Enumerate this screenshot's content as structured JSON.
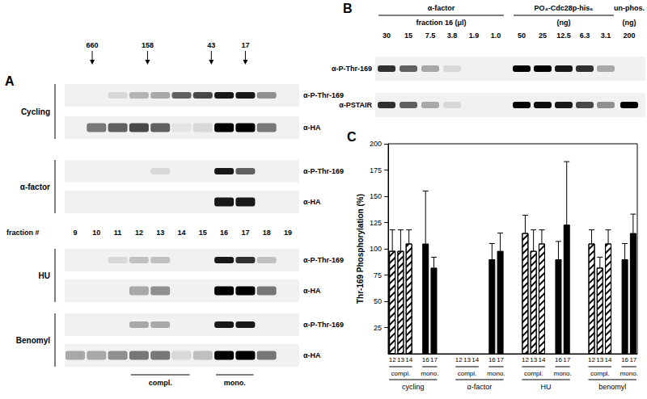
{
  "panels": {
    "A": {
      "title": "A",
      "markers": [
        {
          "value": 660,
          "fraction": 9.8
        },
        {
          "value": 158,
          "fraction": 12.4
        },
        {
          "value": 43,
          "fraction": 15.4
        },
        {
          "value": 17,
          "fraction": 17
        }
      ],
      "fractions_label": "fraction #",
      "fractions": [
        9,
        10,
        11,
        12,
        13,
        14,
        15,
        16,
        17,
        18,
        19
      ],
      "conditions": [
        {
          "name": "Cycling",
          "rows": [
            {
              "label": "α-P-Thr-169",
              "signal": [
                0,
                0,
                0.1,
                0.25,
                0.3,
                0.6,
                0.7,
                0.9,
                0.9,
                0.4,
                0
              ]
            },
            {
              "label": "α-HA",
              "signal": [
                0,
                0.5,
                0.6,
                0.7,
                0.6,
                0.05,
                0.1,
                1,
                1,
                0.5,
                0
              ]
            }
          ]
        },
        {
          "name": "α-factor",
          "rows": [
            {
              "label": "α-P-Thr-169",
              "signal": [
                0,
                0,
                0,
                0,
                0.1,
                0,
                0,
                0.9,
                0.6,
                0,
                0
              ]
            },
            {
              "label": "α-HA",
              "signal": [
                0,
                0,
                0,
                0,
                0,
                0,
                0,
                0.9,
                0.9,
                0,
                0
              ]
            }
          ]
        },
        {
          "name": "HU",
          "rows": [
            {
              "label": "α-P-Thr-169",
              "signal": [
                0,
                0,
                0.1,
                0.2,
                0.2,
                0,
                0,
                0.9,
                0.8,
                0.2,
                0
              ]
            },
            {
              "label": "α-HA",
              "signal": [
                0,
                0,
                0,
                0.3,
                0.4,
                0,
                0,
                1,
                1,
                0.5,
                0
              ]
            }
          ]
        },
        {
          "name": "Benomyl",
          "rows": [
            {
              "label": "α-P-Thr-169",
              "signal": [
                0,
                0,
                0,
                0.3,
                0.3,
                0,
                0,
                0.9,
                0.9,
                0,
                0
              ]
            },
            {
              "label": "α-HA",
              "signal": [
                0.3,
                0.3,
                0.4,
                0.5,
                0.5,
                0.1,
                0.2,
                1,
                1,
                0.5,
                0
              ]
            }
          ]
        }
      ],
      "brackets": [
        {
          "label": "compl.",
          "from": 12,
          "to": 14
        },
        {
          "label": "mono.",
          "from": 16,
          "to": 17
        }
      ]
    },
    "B": {
      "title": "B",
      "groups": [
        {
          "top": "α-factor",
          "bottom": "fraction 16 (μl)",
          "lanes": [
            "30",
            "15",
            "7.5",
            "3.8",
            "1.9",
            "1.0"
          ]
        },
        {
          "top": "PO₄-Cdc28p-his₆",
          "bottom": "(ng)",
          "lanes": [
            "50",
            "25",
            "12.5",
            "6.3",
            "3.1"
          ]
        },
        {
          "top": "un-phos.",
          "bottom": "(ng)",
          "lanes": [
            "200"
          ]
        }
      ],
      "rows": [
        {
          "label": "α-P-Thr-169",
          "signal": [
            0.8,
            0.6,
            0.3,
            0.1,
            0,
            0,
            1,
            1,
            0.9,
            0.8,
            0.3,
            0
          ]
        },
        {
          "label": "α-PSTAIR",
          "signal": [
            0.8,
            0.6,
            0.3,
            0.1,
            0,
            0,
            1,
            0.95,
            0.9,
            0.7,
            0.4,
            1
          ]
        }
      ]
    }
  },
  "chart_data": {
    "type": "bar",
    "title": "C",
    "y_label": "Thr-169 Phosphorylation (%)",
    "categories": [
      "12",
      "13",
      "14",
      null,
      "16",
      "17",
      null,
      null,
      "12",
      "13",
      "14",
      null,
      "16",
      "17",
      null,
      null,
      "12",
      "13",
      "14",
      null,
      "16",
      "17",
      null,
      null,
      "12",
      "13",
      "14",
      null,
      "16",
      "17"
    ],
    "series": [
      {
        "name": "compl.",
        "color": "#ffffff",
        "values": [
          98,
          98,
          105,
          null,
          null,
          null,
          null,
          null,
          null,
          null,
          null,
          null,
          null,
          null,
          null,
          null,
          115,
          98,
          105,
          null,
          null,
          null,
          null,
          null,
          105,
          82,
          105,
          null,
          null,
          null
        ],
        "errors": [
          20,
          20,
          13,
          null,
          null,
          null,
          null,
          null,
          null,
          null,
          null,
          null,
          null,
          null,
          null,
          null,
          17,
          20,
          13,
          null,
          null,
          null,
          null,
          null,
          13,
          10,
          13,
          null,
          null,
          null
        ]
      },
      {
        "name": "mono.",
        "color": "#000000",
        "values": [
          null,
          null,
          null,
          null,
          105,
          82,
          null,
          null,
          null,
          null,
          null,
          null,
          90,
          98,
          null,
          null,
          null,
          null,
          null,
          null,
          90,
          123,
          null,
          null,
          null,
          null,
          null,
          null,
          90,
          115
        ],
        "errors": [
          null,
          null,
          null,
          null,
          50,
          10,
          null,
          null,
          null,
          null,
          null,
          null,
          15,
          17,
          null,
          null,
          null,
          null,
          null,
          null,
          17,
          60,
          null,
          null,
          null,
          null,
          null,
          null,
          15,
          18
        ]
      }
    ],
    "groups": [
      {
        "label": "cycling",
        "from": 0,
        "to": 5
      },
      {
        "label": "α-factor",
        "from": 8,
        "to": 13
      },
      {
        "label": "HU",
        "from": 16,
        "to": 21
      },
      {
        "label": "benomyl",
        "from": 24,
        "to": 29
      }
    ],
    "brackets": [
      {
        "label": "compl.",
        "from": 0,
        "to": 2
      },
      {
        "label": "mono.",
        "from": 4,
        "to": 5
      },
      {
        "label": "compl.",
        "from": 8,
        "to": 10
      },
      {
        "label": "mono.",
        "from": 12,
        "to": 13
      },
      {
        "label": "compl.",
        "from": 16,
        "to": 18
      },
      {
        "label": "mono.",
        "from": 20,
        "to": 21
      },
      {
        "label": "compl.",
        "from": 24,
        "to": 26
      },
      {
        "label": "mono.",
        "from": 28,
        "to": 29
      }
    ],
    "ylim": [
      0,
      200
    ],
    "yticks": [
      25,
      50,
      75,
      100,
      125,
      150,
      175,
      200
    ],
    "grid": false
  }
}
